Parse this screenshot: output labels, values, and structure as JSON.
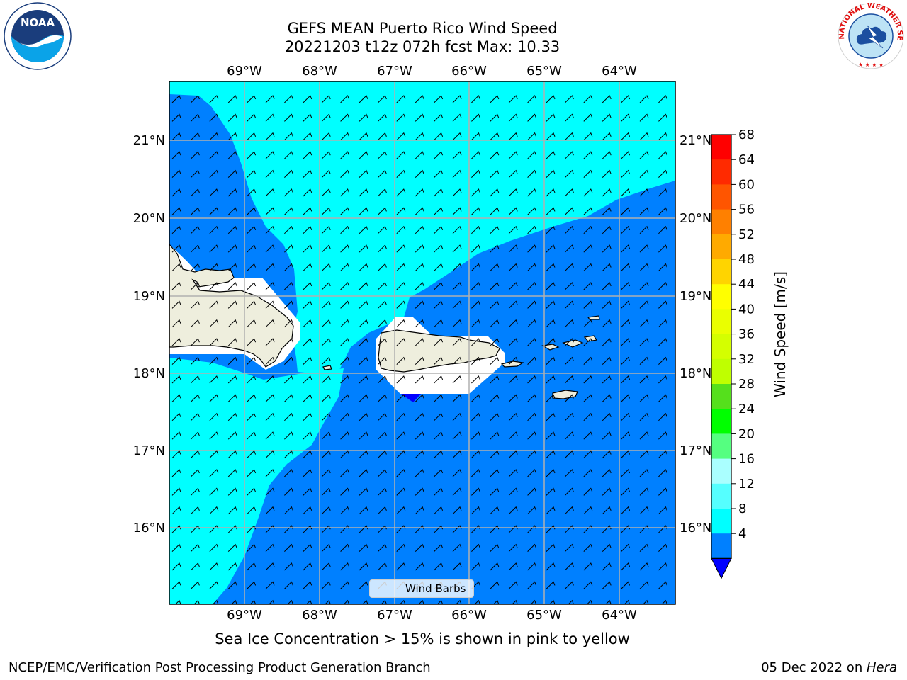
{
  "title": {
    "line1": "GEFS MEAN Puerto Rico Wind Speed",
    "line2": "20221203 t12z 072h fcst   Max: 10.33"
  },
  "map": {
    "lon_labels": [
      "69°W",
      "68°W",
      "67°W",
      "66°W",
      "65°W",
      "64°W"
    ],
    "lat_labels": [
      "21°N",
      "20°N",
      "19°N",
      "18°N",
      "17°N",
      "16°N"
    ],
    "colors": {
      "land": "#eeeedd",
      "ocean_4_8": "#0080ff",
      "ocean_8_12": "#00ffff",
      "below_4": "#0000ff",
      "no_data": "#ffffff",
      "grid": "#b0b0b0"
    },
    "legend": {
      "label": "Wind Barbs"
    },
    "barbs": "black wind barbs over the whole ocean area"
  },
  "colorbar": {
    "label": "Wind Speed [m/s]",
    "ticks": [
      "68",
      "64",
      "60",
      "56",
      "52",
      "48",
      "44",
      "40",
      "36",
      "32",
      "28",
      "24",
      "20",
      "16",
      "12",
      "8",
      "4"
    ],
    "colors": [
      "#ff0000",
      "#ff2a00",
      "#ff5500",
      "#ff8000",
      "#ffaa00",
      "#ffd400",
      "#ffff00",
      "#eaff00",
      "#d4ff00",
      "#bfff00",
      "#55e01c",
      "#00ff00",
      "#55ff80",
      "#aaffff",
      "#55ffff",
      "#00ffff",
      "#0080ff"
    ],
    "under_color": "#0000ff"
  },
  "subcaption": "Sea Ice Concentration > 15% is shown in pink to yellow",
  "footer": {
    "left": "NCEP/EMC/Verification Post Processing Product Generation Branch",
    "right_prefix": "05 Dec 2022 on ",
    "right_italic": "Hera"
  },
  "logos": {
    "noaa_text": "NOAA",
    "nws_text": "NATIONAL WEATHER SERVICE"
  }
}
